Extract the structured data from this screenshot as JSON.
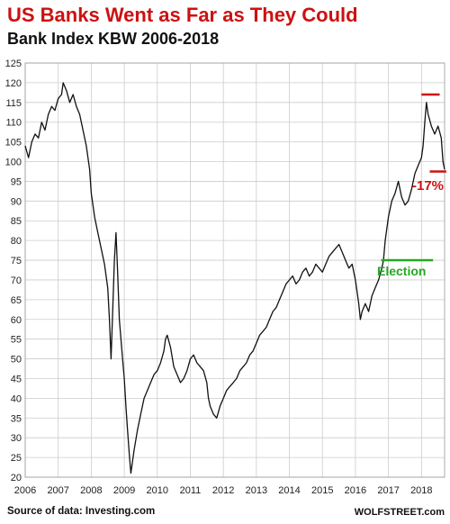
{
  "header": {
    "title": "US Banks Went as Far as They Could",
    "subtitle": "Bank Index KBW 2006-2018"
  },
  "footer": {
    "source": "Source of data: Investing.com",
    "brand": "WOLFSTREET.com"
  },
  "colors": {
    "title": "#cc1111",
    "line": "#111111",
    "peak_marker": "#cc1111",
    "election_marker": "#22aa22",
    "grid": "#cccccc"
  },
  "chart_data": {
    "type": "line",
    "ylim": [
      20,
      125
    ],
    "y_ticks": [
      20,
      25,
      30,
      35,
      40,
      45,
      50,
      55,
      60,
      65,
      70,
      75,
      80,
      85,
      90,
      95,
      100,
      105,
      110,
      115,
      120,
      125
    ],
    "xlim": [
      2006,
      2018.7
    ],
    "x_ticks": [
      2006,
      2007,
      2008,
      2009,
      2010,
      2011,
      2012,
      2013,
      2014,
      2015,
      2016,
      2017,
      2018
    ],
    "x_tick_labels": [
      "2006",
      "2007",
      "2008",
      "2009",
      "2010",
      "2011",
      "2012",
      "2013",
      "2014",
      "2015",
      "2016",
      "2017",
      "2018"
    ],
    "grid": true,
    "series": [
      {
        "x": [
          2006.0,
          2006.1,
          2006.2,
          2006.3,
          2006.4,
          2006.5,
          2006.6,
          2006.7,
          2006.8,
          2006.9,
          2007.0,
          2007.1,
          2007.15,
          2007.25,
          2007.35,
          2007.45,
          2007.55,
          2007.65,
          2007.75,
          2007.85,
          2007.95,
          2008.0,
          2008.1,
          2008.2,
          2008.3,
          2008.4,
          2008.5,
          2008.55,
          2008.6,
          2008.65,
          2008.7,
          2008.75,
          2008.8,
          2008.85,
          2008.9,
          2008.95,
          2009.0,
          2009.05,
          2009.1,
          2009.15,
          2009.2,
          2009.3,
          2009.4,
          2009.5,
          2009.6,
          2009.7,
          2009.8,
          2009.9,
          2010.0,
          2010.1,
          2010.2,
          2010.25,
          2010.3,
          2010.4,
          2010.5,
          2010.6,
          2010.7,
          2010.8,
          2010.9,
          2011.0,
          2011.1,
          2011.2,
          2011.3,
          2011.4,
          2011.5,
          2011.55,
          2011.6,
          2011.7,
          2011.8,
          2011.9,
          2012.0,
          2012.1,
          2012.2,
          2012.3,
          2012.4,
          2012.5,
          2012.6,
          2012.7,
          2012.8,
          2012.9,
          2013.0,
          2013.1,
          2013.2,
          2013.3,
          2013.4,
          2013.5,
          2013.6,
          2013.7,
          2013.8,
          2013.9,
          2014.0,
          2014.1,
          2014.2,
          2014.3,
          2014.4,
          2014.5,
          2014.6,
          2014.7,
          2014.8,
          2014.9,
          2015.0,
          2015.1,
          2015.2,
          2015.3,
          2015.4,
          2015.5,
          2015.6,
          2015.7,
          2015.8,
          2015.9,
          2016.0,
          2016.1,
          2016.15,
          2016.2,
          2016.3,
          2016.4,
          2016.5,
          2016.6,
          2016.7,
          2016.8,
          2016.85,
          2016.9,
          2017.0,
          2017.1,
          2017.2,
          2017.3,
          2017.4,
          2017.5,
          2017.6,
          2017.7,
          2017.8,
          2017.9,
          2018.0,
          2018.05,
          2018.1,
          2018.15,
          2018.2,
          2018.3,
          2018.4,
          2018.5,
          2018.6,
          2018.65,
          2018.7
        ],
        "values": [
          104,
          101,
          105,
          107,
          106,
          110,
          108,
          112,
          114,
          113,
          116,
          117,
          120,
          118,
          115,
          117,
          114,
          112,
          108,
          104,
          98,
          92,
          86,
          82,
          78,
          74,
          68,
          60,
          50,
          62,
          75,
          82,
          72,
          60,
          55,
          50,
          45,
          38,
          32,
          26,
          21,
          27,
          32,
          36,
          40,
          42,
          44,
          46,
          47,
          49,
          52,
          55,
          56,
          53,
          48,
          46,
          44,
          45,
          47,
          50,
          51,
          49,
          48,
          47,
          44,
          40,
          38,
          36,
          35,
          38,
          40,
          42,
          43,
          44,
          45,
          47,
          48,
          49,
          51,
          52,
          54,
          56,
          57,
          58,
          60,
          62,
          63,
          65,
          67,
          69,
          70,
          71,
          69,
          70,
          72,
          73,
          71,
          72,
          74,
          73,
          72,
          74,
          76,
          77,
          78,
          79,
          77,
          75,
          73,
          74,
          70,
          64,
          60,
          62,
          64,
          62,
          66,
          68,
          70,
          73,
          75,
          80,
          86,
          90,
          92,
          95,
          91,
          89,
          90,
          93,
          97,
          99,
          101,
          104,
          110,
          115,
          112,
          109,
          107,
          109,
          106,
          100,
          98
        ]
      }
    ],
    "annotations": [
      {
        "label": "-17%",
        "color": "#cc1111"
      },
      {
        "label": "Election",
        "color": "#22aa22"
      }
    ],
    "markers": [
      {
        "kind": "peak_line",
        "x_start": 2018.0,
        "x_end": 2018.55,
        "y": 117,
        "color": "#cc1111"
      },
      {
        "kind": "low_line",
        "x_start": 2018.25,
        "x_end": 2018.75,
        "y": 97.5,
        "color": "#cc1111"
      },
      {
        "kind": "election_line",
        "x_start": 2016.78,
        "x_end": 2018.35,
        "y": 75,
        "color": "#22aa22"
      }
    ]
  }
}
